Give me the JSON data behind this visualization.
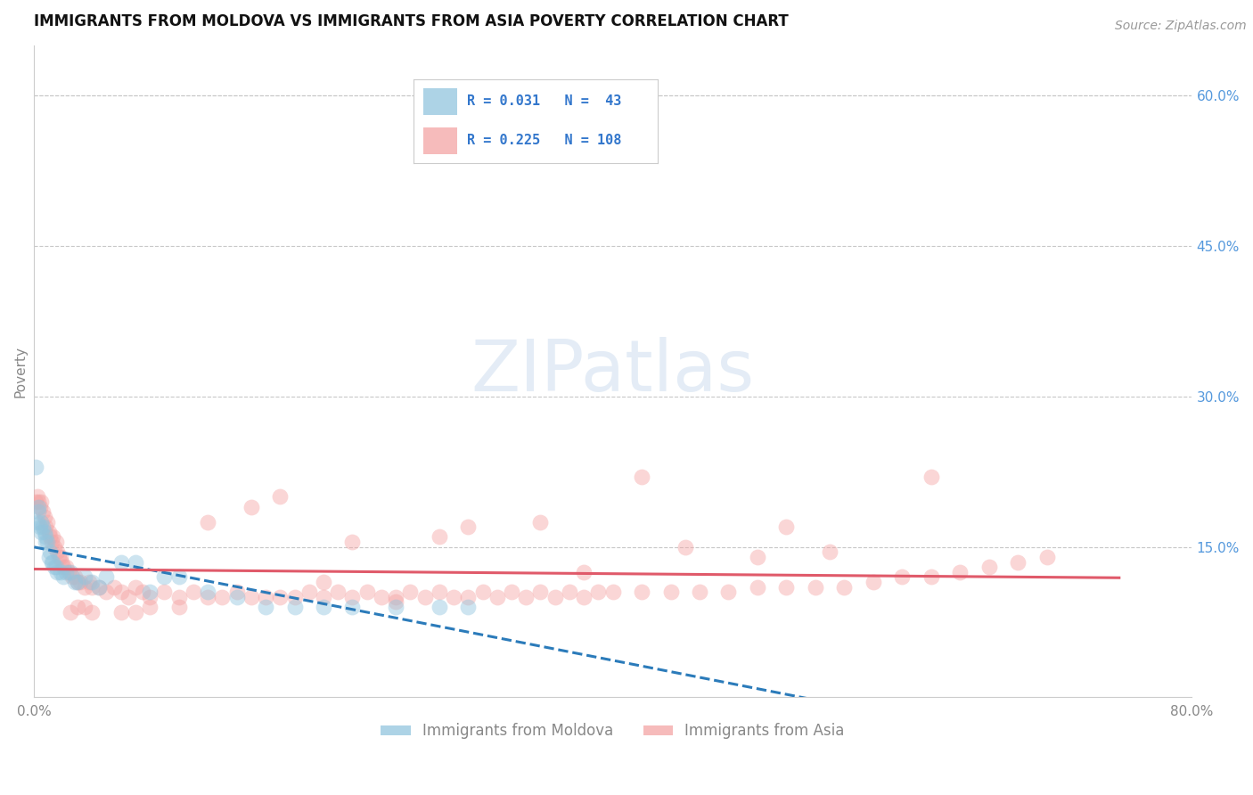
{
  "title": "IMMIGRANTS FROM MOLDOVA VS IMMIGRANTS FROM ASIA POVERTY CORRELATION CHART",
  "source_text": "Source: ZipAtlas.com",
  "ylabel": "Poverty",
  "xlim": [
    0.0,
    0.8
  ],
  "ylim": [
    0.0,
    0.65
  ],
  "y_ticks_right": [
    0.15,
    0.3,
    0.45,
    0.6
  ],
  "y_tick_labels_right": [
    "15.0%",
    "30.0%",
    "45.0%",
    "60.0%"
  ],
  "grid_color": "#c8c8c8",
  "background_color": "#ffffff",
  "moldova_color": "#92c5de",
  "asia_color": "#f4a5a5",
  "moldova_R": 0.031,
  "moldova_N": 43,
  "asia_R": 0.225,
  "asia_N": 108,
  "legend_label_moldova": "Immigrants from Moldova",
  "legend_label_asia": "Immigrants from Asia",
  "moldova_trend_color": "#2b7bba",
  "asia_trend_color": "#e05a6a",
  "right_tick_color": "#5599dd",
  "legend_text_color": "#3377cc",
  "title_color": "#111111",
  "title_fontsize": 12,
  "axis_label_color": "#888888",
  "tick_color": "#888888",
  "source_color": "#999999",
  "watermark_text": "ZIPatlas",
  "watermark_color": "#b8cfe8",
  "scatter_size": 110,
  "scatter_alpha": 0.45,
  "moldova_scatter_x": [
    0.001,
    0.002,
    0.003,
    0.003,
    0.004,
    0.005,
    0.005,
    0.006,
    0.007,
    0.008,
    0.008,
    0.009,
    0.01,
    0.011,
    0.012,
    0.013,
    0.014,
    0.015,
    0.016,
    0.018,
    0.02,
    0.022,
    0.025,
    0.028,
    0.03,
    0.035,
    0.04,
    0.045,
    0.05,
    0.06,
    0.07,
    0.08,
    0.09,
    0.1,
    0.12,
    0.14,
    0.16,
    0.18,
    0.2,
    0.22,
    0.25,
    0.28,
    0.3
  ],
  "moldova_scatter_y": [
    0.23,
    0.175,
    0.185,
    0.19,
    0.17,
    0.165,
    0.175,
    0.17,
    0.165,
    0.16,
    0.155,
    0.155,
    0.14,
    0.145,
    0.135,
    0.135,
    0.13,
    0.13,
    0.125,
    0.125,
    0.12,
    0.125,
    0.125,
    0.115,
    0.115,
    0.12,
    0.115,
    0.11,
    0.12,
    0.135,
    0.135,
    0.105,
    0.12,
    0.12,
    0.105,
    0.1,
    0.09,
    0.09,
    0.09,
    0.09,
    0.09,
    0.09,
    0.09
  ],
  "asia_scatter_x": [
    0.001,
    0.002,
    0.003,
    0.004,
    0.005,
    0.006,
    0.007,
    0.008,
    0.009,
    0.01,
    0.011,
    0.012,
    0.013,
    0.014,
    0.015,
    0.016,
    0.017,
    0.018,
    0.019,
    0.02,
    0.022,
    0.024,
    0.026,
    0.028,
    0.03,
    0.032,
    0.035,
    0.038,
    0.04,
    0.045,
    0.05,
    0.055,
    0.06,
    0.065,
    0.07,
    0.075,
    0.08,
    0.09,
    0.1,
    0.11,
    0.12,
    0.13,
    0.14,
    0.15,
    0.16,
    0.17,
    0.18,
    0.19,
    0.2,
    0.21,
    0.22,
    0.23,
    0.24,
    0.25,
    0.26,
    0.27,
    0.28,
    0.29,
    0.3,
    0.31,
    0.32,
    0.33,
    0.34,
    0.35,
    0.36,
    0.37,
    0.38,
    0.39,
    0.4,
    0.42,
    0.44,
    0.46,
    0.48,
    0.5,
    0.52,
    0.54,
    0.56,
    0.58,
    0.6,
    0.62,
    0.64,
    0.66,
    0.68,
    0.7,
    0.62,
    0.52,
    0.45,
    0.38,
    0.3,
    0.25,
    0.2,
    0.15,
    0.1,
    0.08,
    0.06,
    0.04,
    0.035,
    0.03,
    0.025,
    0.5,
    0.55,
    0.42,
    0.35,
    0.28,
    0.22,
    0.17,
    0.12,
    0.07
  ],
  "asia_scatter_y": [
    0.195,
    0.2,
    0.195,
    0.19,
    0.195,
    0.185,
    0.18,
    0.17,
    0.175,
    0.165,
    0.16,
    0.155,
    0.16,
    0.15,
    0.155,
    0.145,
    0.14,
    0.14,
    0.135,
    0.13,
    0.13,
    0.125,
    0.12,
    0.12,
    0.115,
    0.115,
    0.11,
    0.115,
    0.11,
    0.11,
    0.105,
    0.11,
    0.105,
    0.1,
    0.11,
    0.105,
    0.1,
    0.105,
    0.1,
    0.105,
    0.1,
    0.1,
    0.105,
    0.1,
    0.1,
    0.1,
    0.1,
    0.105,
    0.1,
    0.105,
    0.1,
    0.105,
    0.1,
    0.1,
    0.105,
    0.1,
    0.105,
    0.1,
    0.1,
    0.105,
    0.1,
    0.105,
    0.1,
    0.105,
    0.1,
    0.105,
    0.1,
    0.105,
    0.105,
    0.105,
    0.105,
    0.105,
    0.105,
    0.11,
    0.11,
    0.11,
    0.11,
    0.115,
    0.12,
    0.12,
    0.125,
    0.13,
    0.135,
    0.14,
    0.22,
    0.17,
    0.15,
    0.125,
    0.17,
    0.095,
    0.115,
    0.19,
    0.09,
    0.09,
    0.085,
    0.085,
    0.09,
    0.09,
    0.085,
    0.14,
    0.145,
    0.22,
    0.175,
    0.16,
    0.155,
    0.2,
    0.175,
    0.085
  ]
}
